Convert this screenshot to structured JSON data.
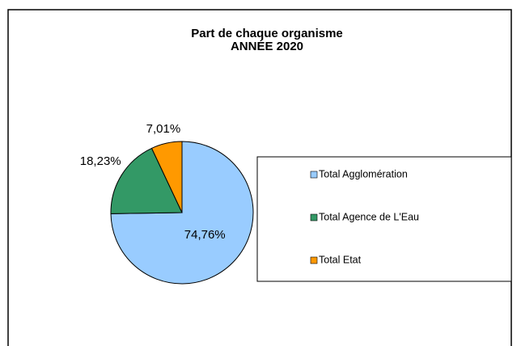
{
  "chart_data": {
    "type": "pie",
    "title": "Part de chaque organisme",
    "subtitle": "ANNÉE 2020",
    "categories": [
      "Total Agglomération",
      "Total Agence de L'Eau",
      "Total Etat"
    ],
    "values": [
      74.76,
      18.23,
      7.01
    ],
    "value_labels": [
      "74,76%",
      "18,23%",
      "7,01%"
    ],
    "colors": [
      "#99ccff",
      "#339966",
      "#ff9900"
    ]
  }
}
